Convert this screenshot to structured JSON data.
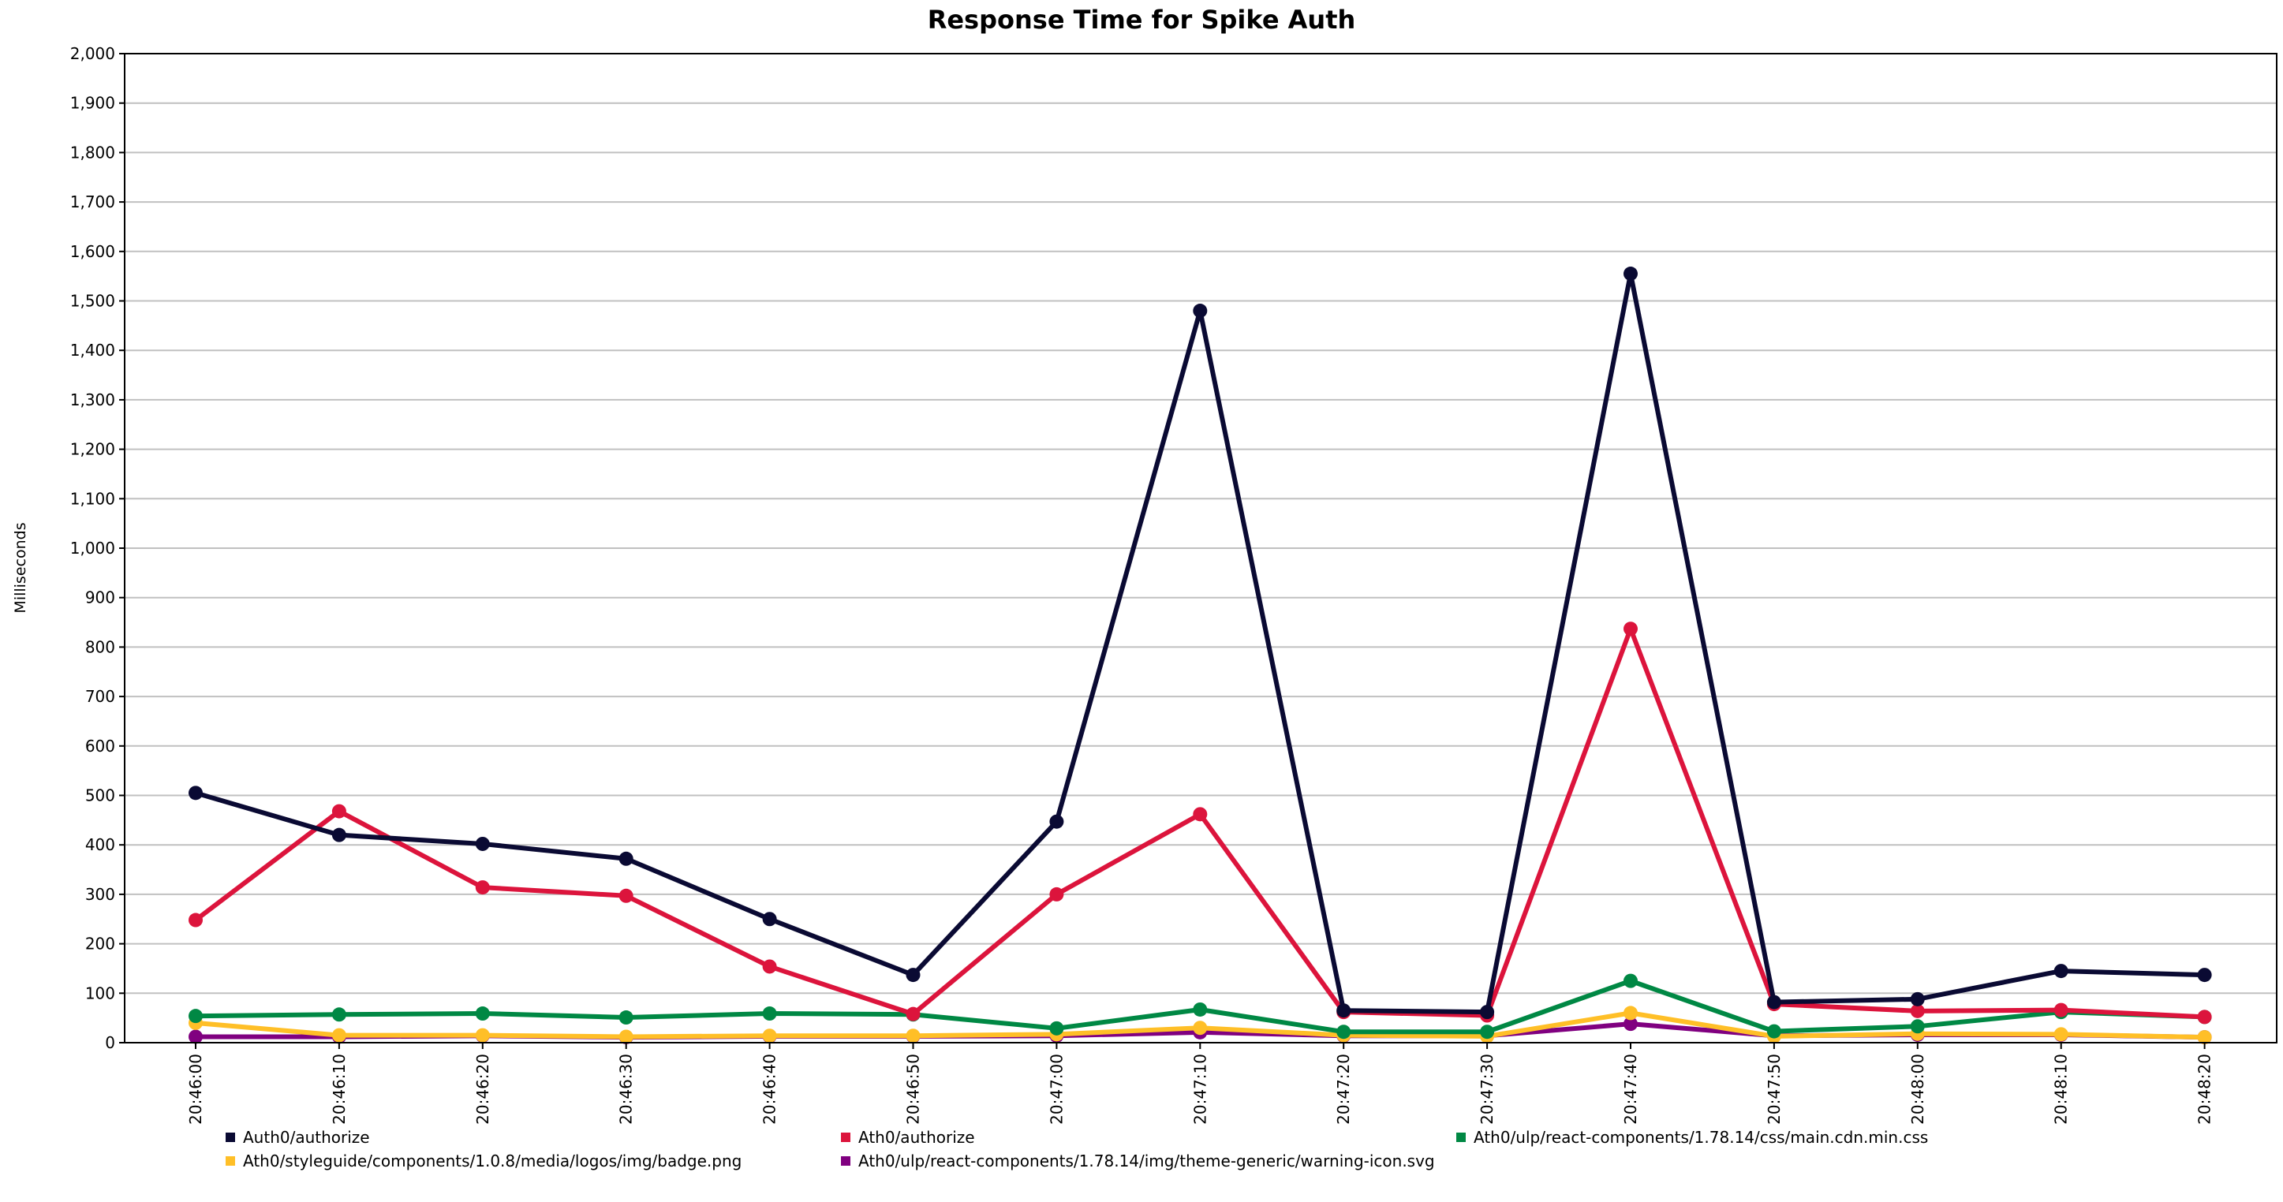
{
  "chart_data": {
    "type": "line",
    "title": "Response Time for Spike Auth",
    "ylabel": "Milliseconds",
    "xlabel": "",
    "ylim": [
      0,
      2000
    ],
    "yticks": [
      0,
      100,
      200,
      300,
      400,
      500,
      600,
      700,
      800,
      900,
      1000,
      1100,
      1200,
      1300,
      1400,
      1500,
      1600,
      1700,
      1800,
      1900,
      2000
    ],
    "ytick_labels": [
      "0",
      "100",
      "200",
      "300",
      "400",
      "500",
      "600",
      "700",
      "800",
      "900",
      "1,000",
      "1,100",
      "1,200",
      "1,300",
      "1,400",
      "1,500",
      "1,600",
      "1,700",
      "1,800",
      "1,900",
      "2,000"
    ],
    "categories": [
      "20:46:00",
      "20:46:10",
      "20:46:20",
      "20:46:30",
      "20:46:40",
      "20:46:50",
      "20:47:00",
      "20:47:10",
      "20:47:20",
      "20:47:30",
      "20:47:40",
      "20:47:50",
      "20:48:00",
      "20:48:10",
      "20:48:20"
    ],
    "grid": true,
    "legend_position": "bottom",
    "series": [
      {
        "name": "Auth0/authorize",
        "color": "#0a0a33",
        "values": [
          505,
          420,
          402,
          372,
          250,
          137,
          447,
          1480,
          65,
          62,
          1555,
          82,
          88,
          145,
          137
        ]
      },
      {
        "name": "Ath0/authorize",
        "color": "#dc143c",
        "values": [
          248,
          468,
          314,
          297,
          154,
          58,
          300,
          462,
          62,
          55,
          837,
          78,
          64,
          66,
          52
        ]
      },
      {
        "name": "Ath0/ulp/react-components/1.78.14/css/main.cdn.min.css",
        "color": "#008844",
        "values": [
          54,
          57,
          59,
          51,
          59,
          57,
          29,
          67,
          22,
          22,
          125,
          23,
          33,
          62,
          52
        ]
      },
      {
        "name": "Ath0/styleguide/components/1.0.8/media/logos/img/badge.png",
        "color": "#ffbf27",
        "values": [
          40,
          15,
          15,
          12,
          14,
          14,
          17,
          30,
          15,
          13,
          60,
          13,
          18,
          17,
          11
        ]
      },
      {
        "name": "Ath0/ulp/react-components/1.78.14/img/theme-generic/warning-icon.svg",
        "color": "#800080",
        "values": [
          12,
          12,
          14,
          11,
          13,
          13,
          14,
          21,
          14,
          14,
          38,
          14,
          16,
          16,
          11
        ]
      }
    ]
  }
}
